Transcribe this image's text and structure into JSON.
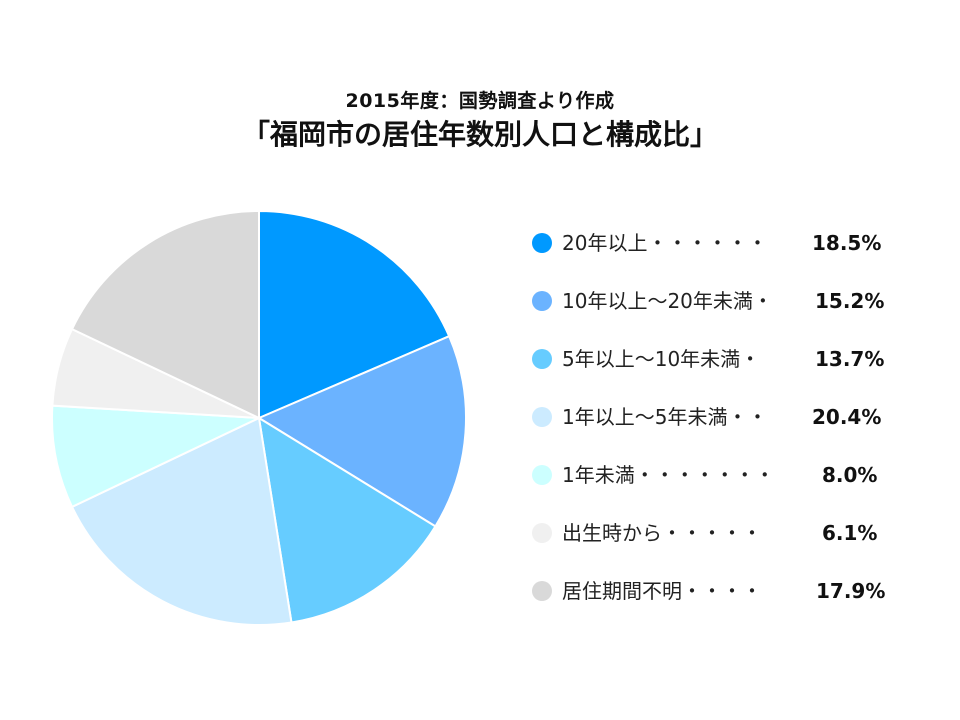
{
  "chart_data": {
    "type": "pie",
    "subtitle": "2015年度：国勢調査より作成",
    "title": "「福岡市の居住年数別人口と構成比」",
    "legend_position": "right",
    "slices": [
      {
        "label": "20年以上・・・・・・",
        "value_label": "18.5%",
        "value": 18.5,
        "color": "#0099FF"
      },
      {
        "label": "10年以上～20年未満・",
        "value_label": "15.2%",
        "value": 15.2,
        "color": "#6BB3FF"
      },
      {
        "label": "5年以上～10年未満・",
        "value_label": "13.7%",
        "value": 13.7,
        "color": "#66CCFF"
      },
      {
        "label": "1年以上～5年未満・・",
        "value_label": "20.4%",
        "value": 20.4,
        "color": "#CCEBFF"
      },
      {
        "label": "1年未満・・・・・・・",
        "value_label": "8.0%",
        "value": 8.0,
        "color": "#CCFFFF"
      },
      {
        "label": "出生時から・・・・・",
        "value_label": "6.1%",
        "value": 6.1,
        "color": "#F0F0F0"
      },
      {
        "label": "居住期間不明・・・・",
        "value_label": "17.9%",
        "value": 17.9,
        "color": "#D9D9D9"
      }
    ]
  }
}
